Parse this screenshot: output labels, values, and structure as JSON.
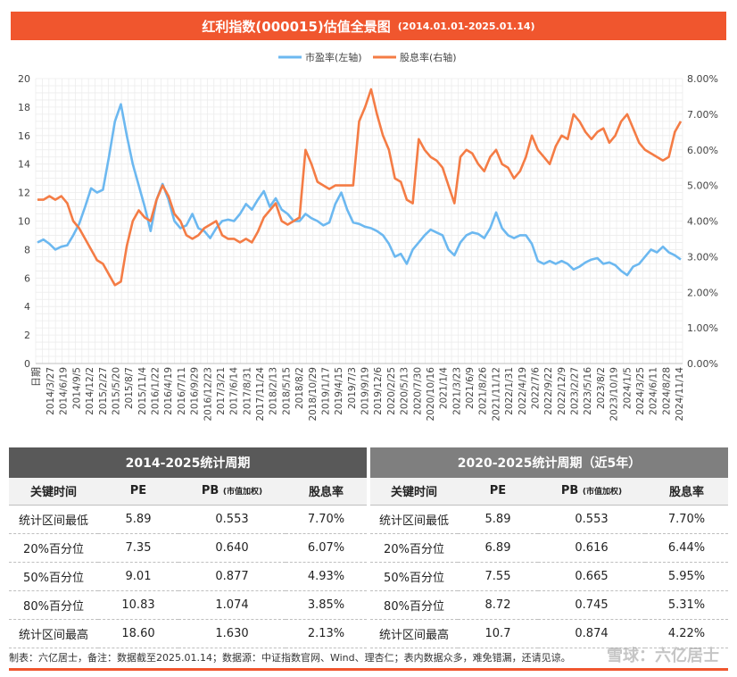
{
  "header": {
    "title": "红利指数(000015)估值全景图",
    "range": "(2014.01.01-2025.01.14)"
  },
  "chart_data": {
    "type": "line",
    "legend_position": "top",
    "xlabel": "日期",
    "y_left": {
      "ticks": [
        "0",
        "2",
        "4",
        "6",
        "8",
        "10",
        "12",
        "14",
        "16",
        "18",
        "20"
      ],
      "lim": [
        0,
        20
      ]
    },
    "y_right": {
      "ticks": [
        "0.00%",
        "1.00%",
        "2.00%",
        "3.00%",
        "4.00%",
        "5.00%",
        "6.00%",
        "7.00%",
        "8.00%"
      ],
      "lim": [
        0,
        8
      ]
    },
    "x_ticks": [
      "2014/3/27",
      "2014/6/19",
      "2014/9/5",
      "2014/12/2",
      "2015/2/27",
      "2015/5/20",
      "2015/8/7",
      "2015/11/4",
      "2016/1/22",
      "2016/4/19",
      "2016/7/11",
      "2016/9/29",
      "2016/12/23",
      "2017/3/21",
      "2017/6/14",
      "2017/8/31",
      "2017/11/24",
      "2018/2/13",
      "2018/5/15",
      "2018/8/2",
      "2018/10/29",
      "2019/1/17",
      "2019/4/15",
      "2019/7/3",
      "2019/9/19",
      "2019/12/6",
      "2020/2/25",
      "2020/5/13",
      "2020/7/30",
      "2020/10/16",
      "2021/1/4",
      "2021/3/23",
      "2021/6/9",
      "2021/8/26",
      "2021/11/12",
      "2022/1/31",
      "2022/4/19",
      "2022/7/6",
      "2022/9/22",
      "2022/12/9",
      "2023/2/27",
      "2023/5/16",
      "2023/8/2",
      "2023/10/19",
      "2024/1/5",
      "2024/3/25",
      "2024/6/11",
      "2024/8/28",
      "2024/11/14"
    ],
    "series": [
      {
        "name": "市盈率(左轴)",
        "axis": "left",
        "color": "#6cb8f0",
        "values": [
          8.5,
          8.7,
          8.4,
          8.0,
          8.2,
          8.3,
          9.0,
          9.8,
          11.0,
          12.3,
          12.0,
          12.2,
          14.5,
          17.0,
          18.2,
          16.0,
          14.0,
          12.5,
          11.0,
          9.3,
          11.5,
          12.6,
          11.5,
          10.0,
          9.5,
          9.7,
          10.5,
          9.5,
          9.3,
          8.8,
          9.5,
          10.0,
          10.1,
          10.0,
          10.5,
          11.2,
          10.8,
          11.5,
          12.1,
          11.0,
          11.6,
          10.8,
          10.5,
          10.0,
          10.0,
          10.5,
          10.2,
          10.0,
          9.7,
          9.9,
          11.2,
          12.0,
          10.8,
          9.9,
          9.8,
          9.6,
          9.5,
          9.3,
          9.0,
          8.4,
          7.5,
          7.7,
          7.0,
          8.0,
          8.5,
          9.0,
          9.4,
          9.2,
          9.0,
          8.0,
          7.6,
          8.5,
          9.0,
          9.2,
          9.1,
          8.8,
          9.5,
          10.6,
          9.5,
          9.0,
          8.8,
          9.0,
          9.0,
          8.4,
          7.2,
          7.0,
          7.2,
          7.0,
          7.2,
          7.0,
          6.6,
          6.8,
          7.1,
          7.3,
          7.4,
          7.0,
          7.1,
          6.9,
          6.5,
          6.2,
          6.8,
          7.0,
          7.5,
          8.0,
          7.8,
          8.2,
          7.8,
          7.6,
          7.3
        ]
      },
      {
        "name": "股息率(右轴)",
        "axis": "right",
        "color": "#f47c45",
        "values": [
          4.6,
          4.6,
          4.7,
          4.6,
          4.7,
          4.5,
          4.0,
          3.8,
          3.5,
          3.2,
          2.9,
          2.8,
          2.5,
          2.2,
          2.3,
          3.3,
          4.0,
          4.3,
          4.1,
          4.0,
          4.6,
          5.0,
          4.7,
          4.2,
          4.0,
          3.6,
          3.5,
          3.6,
          3.8,
          3.9,
          4.0,
          3.6,
          3.5,
          3.5,
          3.4,
          3.5,
          3.4,
          3.7,
          4.1,
          4.3,
          4.5,
          4.0,
          3.9,
          4.0,
          4.1,
          6.0,
          5.6,
          5.1,
          5.0,
          4.9,
          5.0,
          5.0,
          5.0,
          5.0,
          6.8,
          7.2,
          7.7,
          7.0,
          6.4,
          6.0,
          5.2,
          5.1,
          4.6,
          4.5,
          6.3,
          6.0,
          5.8,
          5.7,
          5.5,
          5.0,
          4.5,
          5.8,
          6.0,
          5.9,
          5.6,
          5.4,
          5.8,
          6.0,
          5.6,
          5.5,
          5.2,
          5.4,
          5.8,
          6.4,
          6.0,
          5.8,
          5.6,
          6.1,
          6.4,
          6.3,
          7.0,
          6.8,
          6.5,
          6.3,
          6.5,
          6.6,
          6.2,
          6.4,
          6.8,
          7.0,
          6.6,
          6.2,
          6.0,
          5.9,
          5.8,
          5.7,
          5.8,
          6.5,
          6.8
        ]
      }
    ]
  },
  "table": {
    "period_left": "2014-2025统计周期",
    "period_right": "2020-2025统计周期（近5年）",
    "headers": {
      "key_time": "关键时间",
      "pe": "PE",
      "pb": "PB",
      "pb_note": "(市值加权)",
      "dy": "股息率"
    },
    "rows": [
      {
        "label": "统计区间最低",
        "l_pe": "5.89",
        "l_pb": "0.553",
        "l_dy": "7.70%",
        "r_label": "统计区间最低",
        "r_pe": "5.89",
        "r_pb": "0.553",
        "r_dy": "7.70%"
      },
      {
        "label": "20%百分位",
        "l_pe": "7.35",
        "l_pb": "0.640",
        "l_dy": "6.07%",
        "r_label": "20%百分位",
        "r_pe": "6.89",
        "r_pb": "0.616",
        "r_dy": "6.44%"
      },
      {
        "label": "50%百分位",
        "l_pe": "9.01",
        "l_pb": "0.877",
        "l_dy": "4.93%",
        "r_label": "50%百分位",
        "r_pe": "7.55",
        "r_pb": "0.665",
        "r_dy": "5.95%"
      },
      {
        "label": "80%百分位",
        "l_pe": "10.83",
        "l_pb": "1.074",
        "l_dy": "3.85%",
        "r_label": "80%百分位",
        "r_pe": "8.72",
        "r_pb": "0.745",
        "r_dy": "5.31%"
      },
      {
        "label": "统计区间最高",
        "l_pe": "18.60",
        "l_pb": "1.630",
        "l_dy": "2.13%",
        "r_label": "统计区间最高",
        "r_pe": "10.7",
        "r_pb": "0.874",
        "r_dy": "4.22%"
      }
    ]
  },
  "footer": {
    "note": "制表：六亿居士，备注：数据截至2025.01.14；数据源：中证指数官网、Wind、理杏仁；表内数据众多，难免错漏，还请见谅。",
    "watermark": "雪球：六亿居士"
  }
}
